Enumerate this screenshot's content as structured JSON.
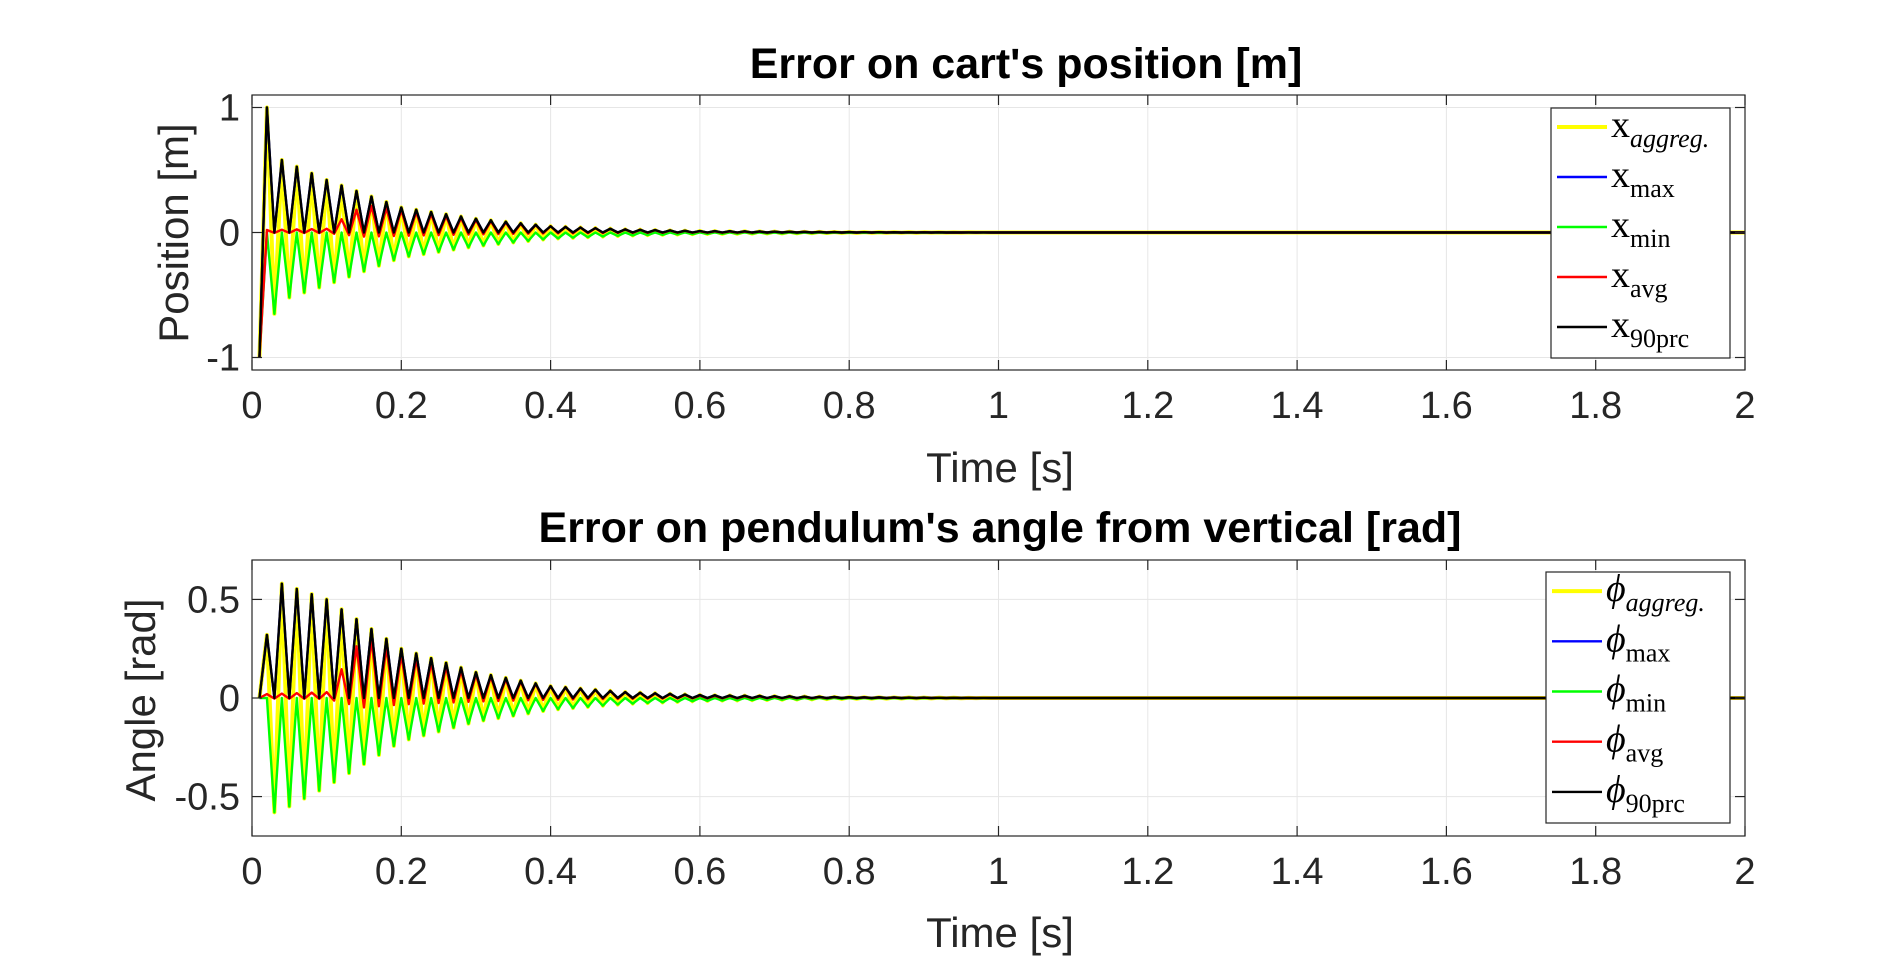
{
  "chart_data": [
    {
      "type": "line",
      "title": "Error on cart's position [m]",
      "xlabel": "Time [s]",
      "ylabel": "Position [m]",
      "xlim": [
        0,
        2
      ],
      "ylim": [
        -1.1,
        1.1
      ],
      "xticks": [
        0,
        0.2,
        0.4,
        0.6,
        0.8,
        1,
        1.2,
        1.4,
        1.6,
        1.8,
        2
      ],
      "xtick_labels": [
        "0",
        "0.2",
        "0.4",
        "0.6",
        "0.8",
        "1",
        "1.2",
        "1.4",
        "1.6",
        "1.8",
        "2"
      ],
      "yticks": [
        -1,
        0,
        1
      ],
      "ytick_labels": [
        "-1",
        "0",
        "1"
      ],
      "grid": true,
      "legend_position": "top-right",
      "oscillation": {
        "start": [
          0.01,
          -1.0
        ],
        "first_peak": [
          0.02,
          1.0
        ],
        "half_period": 0.01,
        "envelope": {
          "x_aggreg": [
            [
              0.02,
              1.0
            ],
            [
              0.04,
              -0.65
            ],
            [
              0.06,
              0.52
            ],
            [
              0.1,
              0.42
            ],
            [
              0.2,
              0.2
            ],
            [
              0.3,
              0.11
            ],
            [
              0.4,
              0.05
            ],
            [
              0.5,
              0.025
            ],
            [
              0.6,
              0.012
            ],
            [
              0.8,
              0.003
            ],
            [
              1.0,
              0.0
            ]
          ],
          "x_max": [
            [
              0.02,
              1.0
            ],
            [
              0.04,
              0.58
            ],
            [
              0.1,
              0.42
            ],
            [
              0.2,
              0.2
            ],
            [
              0.3,
              0.11
            ],
            [
              0.4,
              0.05
            ],
            [
              0.5,
              0.025
            ],
            [
              0.6,
              0.012
            ],
            [
              0.8,
              0.003
            ],
            [
              1.0,
              0.0
            ]
          ],
          "x_min": [
            [
              0.03,
              -0.65
            ],
            [
              0.05,
              -0.52
            ],
            [
              0.1,
              -0.42
            ],
            [
              0.2,
              -0.2
            ],
            [
              0.3,
              -0.11
            ],
            [
              0.4,
              -0.05
            ],
            [
              0.5,
              -0.025
            ],
            [
              0.6,
              -0.012
            ],
            [
              0.8,
              -0.003
            ],
            [
              1.0,
              0.0
            ]
          ],
          "x_avg": [
            [
              0.02,
              0.02
            ],
            [
              0.1,
              0.03
            ],
            [
              0.15,
              0.22
            ],
            [
              0.2,
              0.18
            ],
            [
              0.3,
              0.1
            ],
            [
              0.4,
              0.05
            ],
            [
              0.5,
              0.025
            ],
            [
              0.6,
              0.01
            ],
            [
              0.8,
              0.003
            ],
            [
              1.0,
              0.0
            ]
          ],
          "x_90prc": [
            [
              0.02,
              1.0
            ],
            [
              0.04,
              0.58
            ],
            [
              0.1,
              0.42
            ],
            [
              0.2,
              0.2
            ],
            [
              0.3,
              0.11
            ],
            [
              0.4,
              0.05
            ],
            [
              0.5,
              0.025
            ],
            [
              0.6,
              0.012
            ],
            [
              0.8,
              0.003
            ],
            [
              1.0,
              0.0
            ]
          ]
        }
      },
      "series": [
        {
          "name": "x_aggreg.",
          "symbol": "x",
          "subscript": "aggreg.",
          "italic_subscript": true,
          "color": "#ffff00"
        },
        {
          "name": "x_max",
          "symbol": "x",
          "subscript": "max",
          "italic_subscript": false,
          "color": "#0000ff"
        },
        {
          "name": "x_min",
          "symbol": "x",
          "subscript": "min",
          "italic_subscript": false,
          "color": "#00ff00"
        },
        {
          "name": "x_avg",
          "symbol": "x",
          "subscript": "avg",
          "italic_subscript": false,
          "color": "#ff0000"
        },
        {
          "name": "x_90prc",
          "symbol": "x",
          "subscript": "90prc",
          "italic_subscript": false,
          "color": "#000000"
        }
      ]
    },
    {
      "type": "line",
      "title": "Error on pendulum's angle from vertical [rad]",
      "xlabel": "Time [s]",
      "ylabel": "Angle [rad]",
      "xlim": [
        0,
        2
      ],
      "ylim": [
        -0.7,
        0.7
      ],
      "xticks": [
        0,
        0.2,
        0.4,
        0.6,
        0.8,
        1,
        1.2,
        1.4,
        1.6,
        1.8,
        2
      ],
      "xtick_labels": [
        "0",
        "0.2",
        "0.4",
        "0.6",
        "0.8",
        "1",
        "1.2",
        "1.4",
        "1.6",
        "1.8",
        "2"
      ],
      "yticks": [
        -0.5,
        0,
        0.5
      ],
      "ytick_labels": [
        "-0.5",
        "0",
        "0.5"
      ],
      "grid": true,
      "legend_position": "top-right",
      "oscillation": {
        "start": [
          0.01,
          0.0
        ],
        "first_peak": [
          0.02,
          0.32
        ],
        "half_period": 0.01,
        "envelope": {
          "phi_aggreg": [
            [
              0.02,
              0.32
            ],
            [
              0.04,
              0.58
            ],
            [
              0.1,
              0.5
            ],
            [
              0.2,
              0.25
            ],
            [
              0.3,
              0.13
            ],
            [
              0.4,
              0.06
            ],
            [
              0.5,
              0.03
            ],
            [
              0.6,
              0.015
            ],
            [
              0.8,
              0.004
            ],
            [
              1.0,
              0.0
            ]
          ],
          "phi_max": [
            [
              0.02,
              0.32
            ],
            [
              0.04,
              0.58
            ],
            [
              0.1,
              0.5
            ],
            [
              0.2,
              0.25
            ],
            [
              0.3,
              0.13
            ],
            [
              0.4,
              0.06
            ],
            [
              0.5,
              0.03
            ],
            [
              0.6,
              0.015
            ],
            [
              0.8,
              0.004
            ],
            [
              1.0,
              0.0
            ]
          ],
          "phi_min": [
            [
              0.03,
              -0.58
            ],
            [
              0.05,
              -0.55
            ],
            [
              0.1,
              -0.45
            ],
            [
              0.2,
              -0.22
            ],
            [
              0.3,
              -0.12
            ],
            [
              0.4,
              -0.06
            ],
            [
              0.5,
              -0.03
            ],
            [
              0.6,
              -0.015
            ],
            [
              0.8,
              -0.004
            ],
            [
              1.0,
              0.0
            ]
          ],
          "phi_avg": [
            [
              0.02,
              0.02
            ],
            [
              0.1,
              0.03
            ],
            [
              0.15,
              0.32
            ],
            [
              0.2,
              0.22
            ],
            [
              0.3,
              0.12
            ],
            [
              0.4,
              0.06
            ],
            [
              0.5,
              0.03
            ],
            [
              0.6,
              0.012
            ],
            [
              0.8,
              0.003
            ],
            [
              1.0,
              0.0
            ]
          ],
          "phi_90prc": [
            [
              0.02,
              0.32
            ],
            [
              0.04,
              0.58
            ],
            [
              0.1,
              0.5
            ],
            [
              0.2,
              0.25
            ],
            [
              0.3,
              0.13
            ],
            [
              0.4,
              0.06
            ],
            [
              0.5,
              0.03
            ],
            [
              0.6,
              0.015
            ],
            [
              0.8,
              0.004
            ],
            [
              1.0,
              0.0
            ]
          ]
        }
      },
      "series": [
        {
          "name": "phi_aggreg.",
          "symbol": "ϕ",
          "subscript": "aggreg.",
          "italic_subscript": true,
          "color": "#ffff00"
        },
        {
          "name": "phi_max",
          "symbol": "ϕ",
          "subscript": "max",
          "italic_subscript": false,
          "color": "#0000ff"
        },
        {
          "name": "phi_min",
          "symbol": "ϕ",
          "subscript": "min",
          "italic_subscript": false,
          "color": "#00ff00"
        },
        {
          "name": "phi_avg",
          "symbol": "ϕ",
          "subscript": "avg",
          "italic_subscript": false,
          "color": "#ff0000"
        },
        {
          "name": "phi_90prc",
          "symbol": "ϕ",
          "subscript": "90prc",
          "italic_subscript": false,
          "color": "#000000"
        }
      ]
    }
  ],
  "colors": {
    "grid": "#e6e6e6",
    "axes": "#262626"
  }
}
